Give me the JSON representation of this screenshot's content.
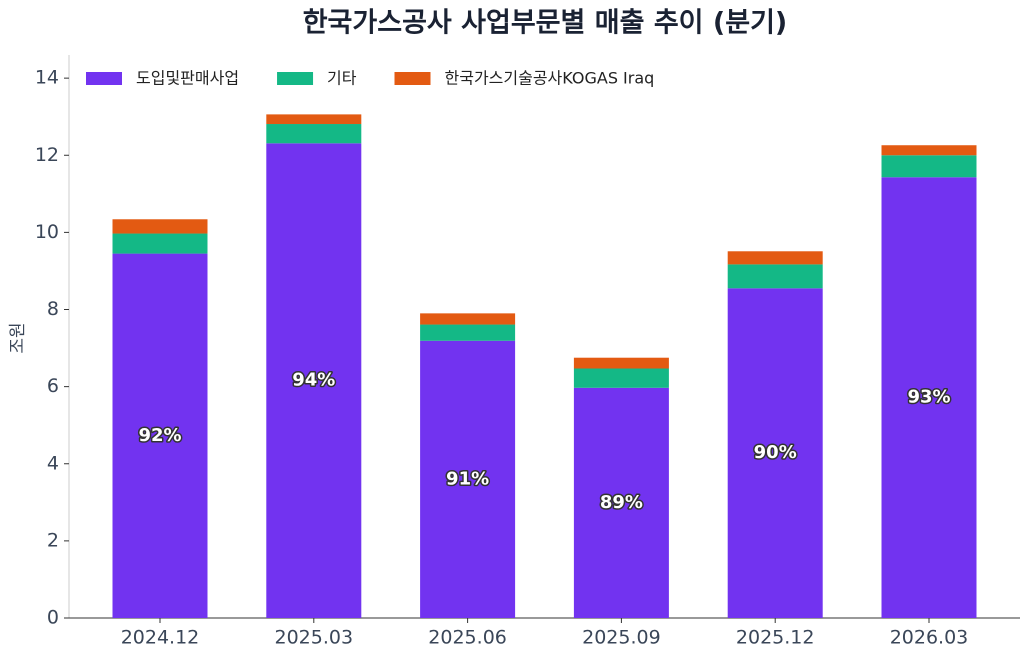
{
  "chart_data": {
    "type": "stacked-bar",
    "title": "한국가스공사 사업부문별 매출 추이 (분기)",
    "y_label": "조원",
    "categories": [
      "2024.12",
      "2025.03",
      "2025.06",
      "2025.09",
      "2025.12",
      "2026.03"
    ],
    "series": [
      {
        "name": "도입및판매사업",
        "color": "#7233f0",
        "values": [
          9.45,
          12.31,
          7.19,
          5.97,
          8.55,
          11.43
        ]
      },
      {
        "name": "기타",
        "color": "#14b886",
        "values": [
          0.52,
          0.5,
          0.42,
          0.5,
          0.62,
          0.57
        ]
      },
      {
        "name": "한국가스기술공사KOGAS Iraq",
        "color": "#e35a12",
        "values": [
          0.37,
          0.25,
          0.29,
          0.28,
          0.34,
          0.26
        ]
      }
    ],
    "share_labels": [
      {
        "value": 92,
        "label": "92%"
      },
      {
        "value": 94,
        "label": "94%"
      },
      {
        "value": 91,
        "label": "91%"
      },
      {
        "value": 89,
        "label": "89%"
      },
      {
        "value": 90,
        "label": "90%"
      },
      {
        "value": 93,
        "label": "93%"
      }
    ],
    "ylim": [
      0,
      14.6
    ],
    "yticks": [
      0,
      2,
      4,
      6,
      8,
      10,
      12,
      14
    ],
    "legend": "upper left"
  }
}
